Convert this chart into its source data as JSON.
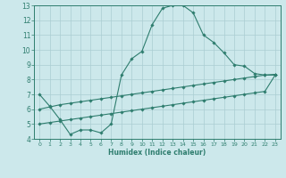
{
  "xlabel": "Humidex (Indice chaleur)",
  "background_color": "#cce8eb",
  "line_color": "#2e7d6e",
  "grid_color": "#aacdd2",
  "xlim": [
    -0.5,
    23.5
  ],
  "ylim": [
    4,
    13
  ],
  "xticks": [
    0,
    1,
    2,
    3,
    4,
    5,
    6,
    7,
    8,
    9,
    10,
    11,
    12,
    13,
    14,
    15,
    16,
    17,
    18,
    19,
    20,
    21,
    22,
    23
  ],
  "yticks": [
    4,
    5,
    6,
    7,
    8,
    9,
    10,
    11,
    12,
    13
  ],
  "curve1_x": [
    0,
    1,
    2,
    3,
    4,
    5,
    6,
    7,
    8,
    9,
    10,
    11,
    12,
    13,
    14,
    15,
    16,
    17,
    18,
    19,
    20,
    21,
    22,
    23
  ],
  "curve1_y": [
    7.0,
    6.2,
    5.3,
    4.3,
    4.6,
    4.6,
    4.4,
    5.0,
    8.3,
    9.4,
    9.9,
    11.7,
    12.8,
    13.0,
    13.0,
    12.5,
    11.0,
    10.5,
    9.8,
    9.0,
    8.9,
    8.4,
    8.3,
    8.3
  ],
  "curve2_x": [
    0,
    1,
    2,
    3,
    4,
    5,
    6,
    7,
    8,
    9,
    10,
    11,
    12,
    13,
    14,
    15,
    16,
    17,
    18,
    19,
    20,
    21,
    22,
    23
  ],
  "curve2_y": [
    6.0,
    6.15,
    6.3,
    6.4,
    6.5,
    6.6,
    6.7,
    6.8,
    6.9,
    7.0,
    7.1,
    7.2,
    7.3,
    7.4,
    7.5,
    7.6,
    7.7,
    7.8,
    7.9,
    8.0,
    8.1,
    8.2,
    8.3,
    8.35
  ],
  "curve3_x": [
    0,
    1,
    2,
    3,
    4,
    5,
    6,
    7,
    8,
    9,
    10,
    11,
    12,
    13,
    14,
    15,
    16,
    17,
    18,
    19,
    20,
    21,
    22,
    23
  ],
  "curve3_y": [
    5.0,
    5.1,
    5.2,
    5.3,
    5.4,
    5.5,
    5.6,
    5.7,
    5.8,
    5.9,
    6.0,
    6.1,
    6.2,
    6.3,
    6.4,
    6.5,
    6.6,
    6.7,
    6.8,
    6.9,
    7.0,
    7.1,
    7.2,
    8.3
  ]
}
